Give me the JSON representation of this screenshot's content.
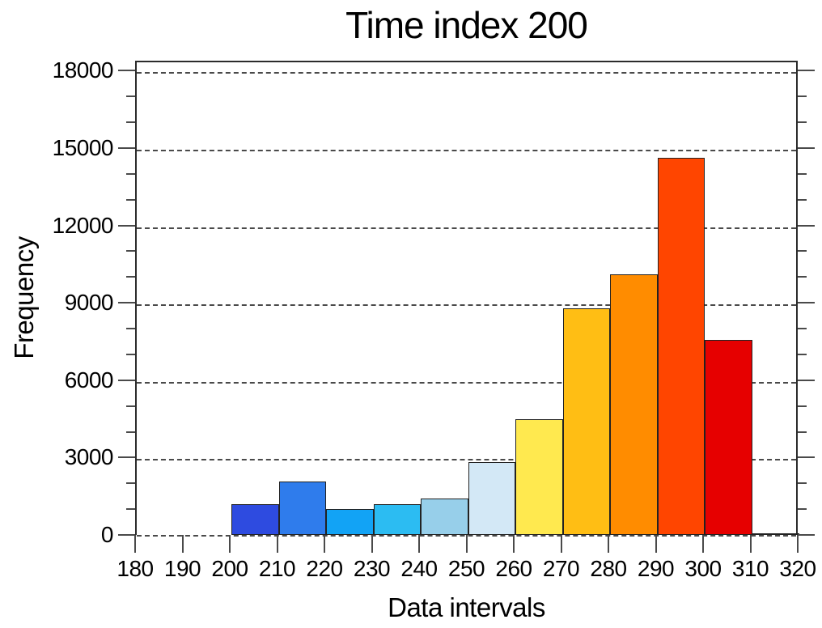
{
  "chart_data": {
    "type": "bar",
    "title": "Time index 200",
    "xlabel": "Data intervals",
    "ylabel": "Frequency",
    "xlim": [
      180,
      320
    ],
    "ylim": [
      0,
      18390
    ],
    "xticks": [
      180,
      190,
      200,
      210,
      220,
      230,
      240,
      250,
      260,
      270,
      280,
      290,
      300,
      310,
      320
    ],
    "yticks": [
      0,
      3000,
      6000,
      9000,
      12000,
      15000,
      18000
    ],
    "y_minor_step": 1000,
    "grid": "horizontal dashed at y major ticks",
    "legend": "none",
    "bins": [
      {
        "x0": 200,
        "x1": 210,
        "value": 1180,
        "color": "#2E4BE0"
      },
      {
        "x0": 210,
        "x1": 220,
        "value": 2070,
        "color": "#2F7CEC"
      },
      {
        "x0": 220,
        "x1": 230,
        "value": 1000,
        "color": "#12A3F5"
      },
      {
        "x0": 230,
        "x1": 240,
        "value": 1200,
        "color": "#2CBCF2"
      },
      {
        "x0": 240,
        "x1": 250,
        "value": 1410,
        "color": "#97CFEA"
      },
      {
        "x0": 250,
        "x1": 260,
        "value": 2810,
        "color": "#D3E8F6"
      },
      {
        "x0": 260,
        "x1": 270,
        "value": 4480,
        "color": "#FFE94F"
      },
      {
        "x0": 270,
        "x1": 280,
        "value": 8790,
        "color": "#FFBE14"
      },
      {
        "x0": 280,
        "x1": 290,
        "value": 10100,
        "color": "#FF8C00"
      },
      {
        "x0": 290,
        "x1": 300,
        "value": 14620,
        "color": "#FF4500"
      },
      {
        "x0": 300,
        "x1": 310,
        "value": 7560,
        "color": "#E60000"
      },
      {
        "x0": 310,
        "x1": 320,
        "value": 30,
        "color": "#E60000"
      }
    ],
    "colors": {
      "background": "#ffffff",
      "axis": "#2b2b2b",
      "grid": "#4a4a4a",
      "bar_edge": "#222222",
      "text": "#000000"
    }
  }
}
